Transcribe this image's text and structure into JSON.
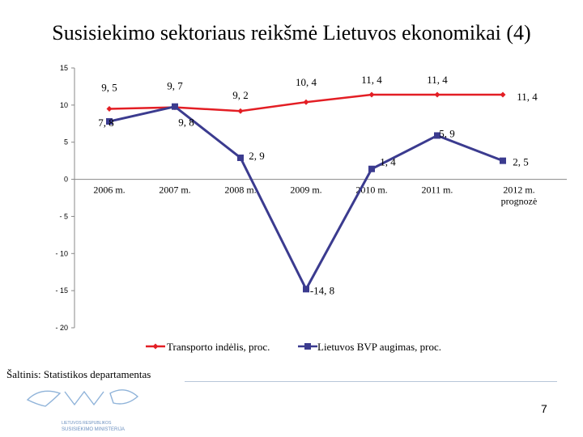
{
  "title": "Susisiekimo sektoriaus reikšmė Lietuvos ekonomikai (4)",
  "source": "Šaltinis: Statistikos departamentas",
  "page_number": "7",
  "logo_text": [
    "LIETUVOS RESPUBLIKOS",
    "SUSISIEKIMO MINISTERIJA"
  ],
  "chart_data": {
    "type": "line",
    "categories": [
      "2006 m.",
      "2007 m.",
      "2008 m.",
      "2009 m.",
      "2010 m.",
      "2011 m.",
      "2012 m. prognozė"
    ],
    "ylim": [
      -20,
      15
    ],
    "yticks": [
      15,
      10,
      5,
      0,
      -5,
      -10,
      -15,
      -20
    ],
    "ytick_labels": [
      "15",
      "10",
      "5",
      "0",
      "- 5",
      "- 10",
      "- 15",
      "- 20"
    ],
    "grid": false,
    "legend_position": "bottom",
    "series": [
      {
        "name": "Transporto indėlis, proc.",
        "color": "#e31e24",
        "marker": "diamond",
        "values": [
          9.5,
          9.7,
          9.2,
          10.4,
          11.4,
          11.4,
          11.4
        ],
        "labels": [
          "9, 5",
          "9, 7",
          "9, 2",
          "10, 4",
          "11, 4",
          "11, 4",
          "11, 4"
        ]
      },
      {
        "name": "Lietuvos BVP augimas, proc.",
        "color": "#3b3b8f",
        "marker": "square",
        "values": [
          7.8,
          9.8,
          2.9,
          -14.8,
          1.4,
          5.9,
          2.5
        ],
        "labels": [
          "7, 8",
          "9, 8",
          "2, 9",
          "-14, 8",
          "1, 4",
          "5, 9",
          "2, 5"
        ]
      }
    ]
  }
}
